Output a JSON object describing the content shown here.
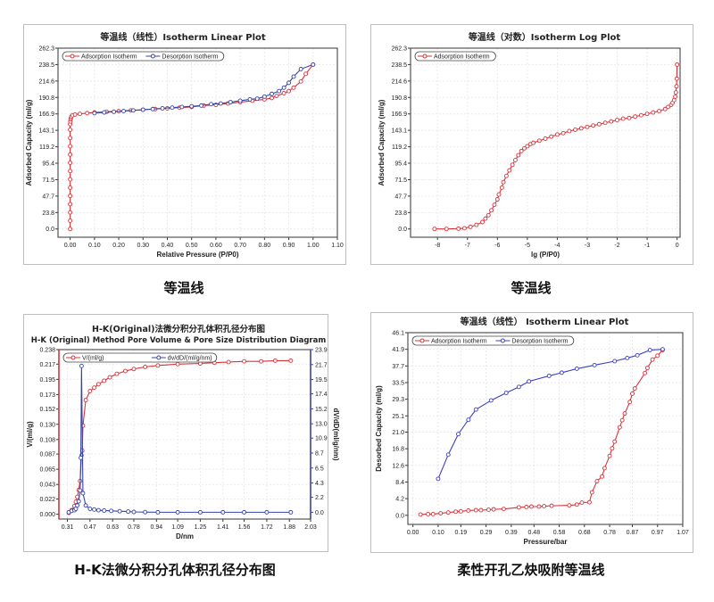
{
  "captions": [
    "等温线",
    "等温线",
    "H-K法微分积分孔体积孔径分布图",
    "柔性开孔乙炔吸附等温线"
  ],
  "chart_data": [
    {
      "type": "line",
      "title": "等温线（线性）Isotherm Linear Plot",
      "xlabel": "Relative Pressure (P/P0)",
      "ylabel": "Adsorbed Capacity (ml/g)",
      "xlim": [
        -0.05,
        1.1
      ],
      "ylim": [
        -12,
        262.3
      ],
      "xticks": [
        "0.00",
        "0.10",
        "0.20",
        "0.30",
        "0.40",
        "0.50",
        "0.60",
        "0.70",
        "0.80",
        "0.90",
        "1.00",
        "1.10"
      ],
      "yticks": [
        "0.0",
        "23.8",
        "47.7",
        "71.5",
        "95.4",
        "119.2",
        "143.1",
        "166.9",
        "190.8",
        "214.6",
        "238.5",
        "262.3"
      ],
      "grid": true,
      "legend": "top-left",
      "series": [
        {
          "name": "Adsorption Isotherm",
          "color": "#d9333a",
          "x": [
            0,
            0,
            0,
            0,
            0,
            0,
            0,
            0,
            0,
            0,
            0,
            0,
            0,
            0,
            0.001,
            0.002,
            0.003,
            0.005,
            0.01,
            0.02,
            0.04,
            0.07,
            0.1,
            0.15,
            0.2,
            0.25,
            0.3,
            0.35,
            0.4,
            0.45,
            0.5,
            0.55,
            0.6,
            0.65,
            0.7,
            0.75,
            0.8,
            0.83,
            0.85,
            0.88,
            0.9,
            0.92,
            0.95,
            0.97,
            1.0
          ],
          "y": [
            0,
            12,
            24,
            36,
            48,
            60,
            72,
            84,
            96,
            108,
            120,
            132,
            144,
            152,
            156,
            159,
            161,
            163,
            165,
            166,
            167,
            168,
            169,
            170,
            171,
            172,
            173,
            174,
            175,
            176,
            177,
            179,
            180,
            182,
            184,
            186,
            188,
            190,
            193,
            197,
            200,
            205,
            214,
            225,
            238.5
          ]
        },
        {
          "name": "Desorption Isotherm",
          "color": "#3545a5",
          "x": [
            1.0,
            0.95,
            0.92,
            0.9,
            0.88,
            0.86,
            0.83,
            0.8,
            0.77,
            0.74,
            0.7,
            0.66,
            0.62,
            0.58,
            0.54,
            0.5,
            0.46,
            0.42,
            0.38,
            0.34,
            0.3,
            0.26,
            0.22,
            0.18,
            0.14,
            0.1
          ],
          "y": [
            238.5,
            232,
            221,
            212,
            205,
            200,
            196,
            192,
            189,
            188,
            186,
            184,
            182,
            181,
            179,
            178,
            177,
            176,
            175,
            174,
            173,
            172,
            171,
            170,
            169,
            168
          ]
        }
      ]
    },
    {
      "type": "line",
      "title": "等温线（对数）Isotherm Log Plot",
      "xlabel": "lg (P/P0)",
      "ylabel": "Adsorbed Capacity (ml/g)",
      "xlim": [
        -8.9,
        0.1
      ],
      "ylim": [
        -12,
        262.3
      ],
      "xticks": [
        "-8",
        "-7",
        "-6",
        "-5",
        "-4",
        "-3",
        "-2",
        "-1",
        "0"
      ],
      "xtick_values": [
        -8,
        -7,
        -6,
        -5,
        -4,
        -3,
        -2,
        -1,
        0
      ],
      "yticks": [
        "0.0",
        "23.8",
        "47.7",
        "71.5",
        "95.4",
        "119.2",
        "143.1",
        "166.9",
        "190.8",
        "214.6",
        "238.5",
        "262.3"
      ],
      "grid": true,
      "legend": "top-left",
      "series": [
        {
          "name": "Adsorption Isotherm",
          "color": "#d9333a",
          "x": [
            -8.1,
            -7.7,
            -7.3,
            -7.1,
            -6.9,
            -6.7,
            -6.5,
            -6.4,
            -6.3,
            -6.2,
            -6.1,
            -6.0,
            -5.95,
            -5.85,
            -5.8,
            -5.7,
            -5.6,
            -5.5,
            -5.4,
            -5.3,
            -5.2,
            -5.1,
            -5.0,
            -4.9,
            -4.8,
            -4.6,
            -4.4,
            -4.2,
            -4.0,
            -3.8,
            -3.6,
            -3.4,
            -3.2,
            -3.0,
            -2.8,
            -2.6,
            -2.4,
            -2.2,
            -2.0,
            -1.8,
            -1.6,
            -1.4,
            -1.2,
            -1.0,
            -0.8,
            -0.6,
            -0.4,
            -0.3,
            -0.2,
            -0.15,
            -0.1,
            -0.06,
            -0.04,
            -0.02,
            -0.01,
            0
          ],
          "y": [
            0,
            0,
            0.5,
            1,
            3,
            6,
            10,
            15,
            20,
            27,
            35,
            43,
            50,
            60,
            68,
            77,
            85,
            93,
            100,
            107,
            113,
            117,
            120,
            123,
            125,
            128,
            131,
            134,
            137,
            139,
            142,
            144,
            146,
            148,
            150,
            152,
            154,
            156,
            158,
            160,
            161,
            163,
            165,
            167,
            169,
            171,
            174,
            177,
            180,
            183,
            187,
            192,
            198,
            207,
            218,
            238.5
          ]
        }
      ]
    },
    {
      "type": "line",
      "title": "H-K(Original)法微分积分孔体积孔径分布图",
      "subtitle": "H-K (Original) Method Pore Volume & Pore Size Distribution Diagram",
      "xlabel": "D/nm",
      "ylabel": "V/(ml/g)",
      "y2label": "dV/dD(ml/g/nm)",
      "xlim": [
        0.25,
        2.03
      ],
      "ylim": [
        -0.007,
        0.238
      ],
      "y2lim": [
        -1.0,
        23.9
      ],
      "xticks": [
        "0.31",
        "0.47",
        "0.63",
        "0.78",
        "0.94",
        "1.09",
        "1.25",
        "1.41",
        "1.56",
        "1.72",
        "1.88",
        "2.03"
      ],
      "yticks": [
        "0.000",
        "0.022",
        "0.043",
        "0.065",
        "0.087",
        "0.108",
        "0.130",
        "0.152",
        "0.173",
        "0.195",
        "0.217",
        "0.238"
      ],
      "y2ticks": [
        "0.0",
        "2.2",
        "4.3",
        "6.5",
        "8.7",
        "10.9",
        "13.0",
        "15.2",
        "17.4",
        "19.5",
        "21.7",
        "23.9"
      ],
      "grid": true,
      "legend": "top",
      "series": [
        {
          "name": "V/(ml/g)",
          "color": "#d9333a",
          "axis": "left",
          "x": [
            0.32,
            0.34,
            0.36,
            0.37,
            0.38,
            0.39,
            0.4,
            0.41,
            0.415,
            0.42,
            0.44,
            0.47,
            0.5,
            0.53,
            0.57,
            0.61,
            0.66,
            0.72,
            0.78,
            0.86,
            0.95,
            1.09,
            1.25,
            1.35,
            1.45,
            1.56,
            1.68,
            1.78,
            1.89
          ],
          "y": [
            0.002,
            0.006,
            0.012,
            0.018,
            0.025,
            0.035,
            0.048,
            0.085,
            0.092,
            0.128,
            0.165,
            0.178,
            0.183,
            0.188,
            0.193,
            0.198,
            0.203,
            0.207,
            0.21,
            0.213,
            0.215,
            0.217,
            0.218,
            0.219,
            0.22,
            0.221,
            0.221,
            0.222,
            0.222
          ]
        },
        {
          "name": "dv/dD/(ml/g/nm)",
          "color": "#3545a5",
          "axis": "right",
          "x": [
            0.32,
            0.34,
            0.36,
            0.37,
            0.38,
            0.39,
            0.4,
            0.405,
            0.41,
            0.42,
            0.44,
            0.47,
            0.5,
            0.53,
            0.57,
            0.62,
            0.68,
            0.74,
            0.78,
            0.86,
            0.95,
            1.09,
            1.25,
            1.41,
            1.56,
            1.72,
            1.89
          ],
          "y": [
            0,
            0.2,
            0.3,
            0.5,
            1.0,
            1.6,
            3.2,
            8.0,
            21.5,
            2.8,
            1.0,
            0.5,
            0.4,
            0.3,
            0.25,
            0.2,
            0.15,
            0.1,
            0.05,
            0.02,
            0,
            0,
            0,
            0,
            0,
            0,
            0
          ]
        }
      ]
    },
    {
      "type": "line",
      "title": "等温线（线性） Isotherm Linear Plot",
      "xlabel": "Pressure/bar",
      "ylabel": "Desorbed Capacity (ml/g)",
      "xlim": [
        -0.02,
        1.07
      ],
      "ylim": [
        -2.3,
        46.1
      ],
      "xticks": [
        "0.00",
        "0.10",
        "0.19",
        "0.29",
        "0.39",
        "0.48",
        "0.58",
        "0.68",
        "0.78",
        "0.87",
        "0.97",
        "1.07"
      ],
      "yticks": [
        "0.0",
        "4.2",
        "8.4",
        "12.6",
        "16.8",
        "21.0",
        "25.1",
        "29.3",
        "33.5",
        "37.7",
        "41.9",
        "46.1"
      ],
      "grid": true,
      "legend": "top-left",
      "series": [
        {
          "name": "Adsorption Isotherm",
          "color": "#d9333a",
          "x": [
            0.03,
            0.06,
            0.08,
            0.11,
            0.14,
            0.17,
            0.19,
            0.22,
            0.25,
            0.27,
            0.3,
            0.32,
            0.36,
            0.42,
            0.45,
            0.47,
            0.5,
            0.52,
            0.55,
            0.62,
            0.65,
            0.67,
            0.7,
            0.71,
            0.73,
            0.75,
            0.76,
            0.78,
            0.79,
            0.8,
            0.82,
            0.83,
            0.84,
            0.86,
            0.87,
            0.88,
            0.92,
            0.93,
            0.95,
            0.97,
            0.99
          ],
          "y": [
            0.2,
            0.3,
            0.3,
            0.5,
            0.7,
            0.9,
            1.0,
            1.2,
            1.3,
            1.3,
            1.4,
            1.5,
            1.6,
            2.0,
            2.1,
            2.2,
            2.2,
            2.3,
            2.4,
            2.5,
            2.7,
            3.2,
            3.3,
            5.8,
            8.6,
            9.8,
            11.9,
            15.0,
            16.9,
            18.6,
            22.2,
            24.0,
            25.7,
            28.6,
            30.7,
            32.0,
            35.9,
            37.2,
            39.3,
            40.3,
            41.7
          ]
        },
        {
          "name": "Desorption Isotherm",
          "color": "#3c3fc8",
          "x": [
            0.99,
            0.94,
            0.89,
            0.85,
            0.8,
            0.72,
            0.65,
            0.59,
            0.54,
            0.46,
            0.42,
            0.37,
            0.31,
            0.25,
            0.22,
            0.18,
            0.14,
            0.1
          ],
          "y": [
            41.9,
            41.7,
            40.4,
            39.7,
            38.9,
            37.9,
            37.0,
            36.0,
            35.2,
            33.8,
            32.4,
            30.9,
            29.0,
            26.7,
            24.1,
            20.5,
            15.3,
            9.2
          ]
        }
      ]
    }
  ]
}
